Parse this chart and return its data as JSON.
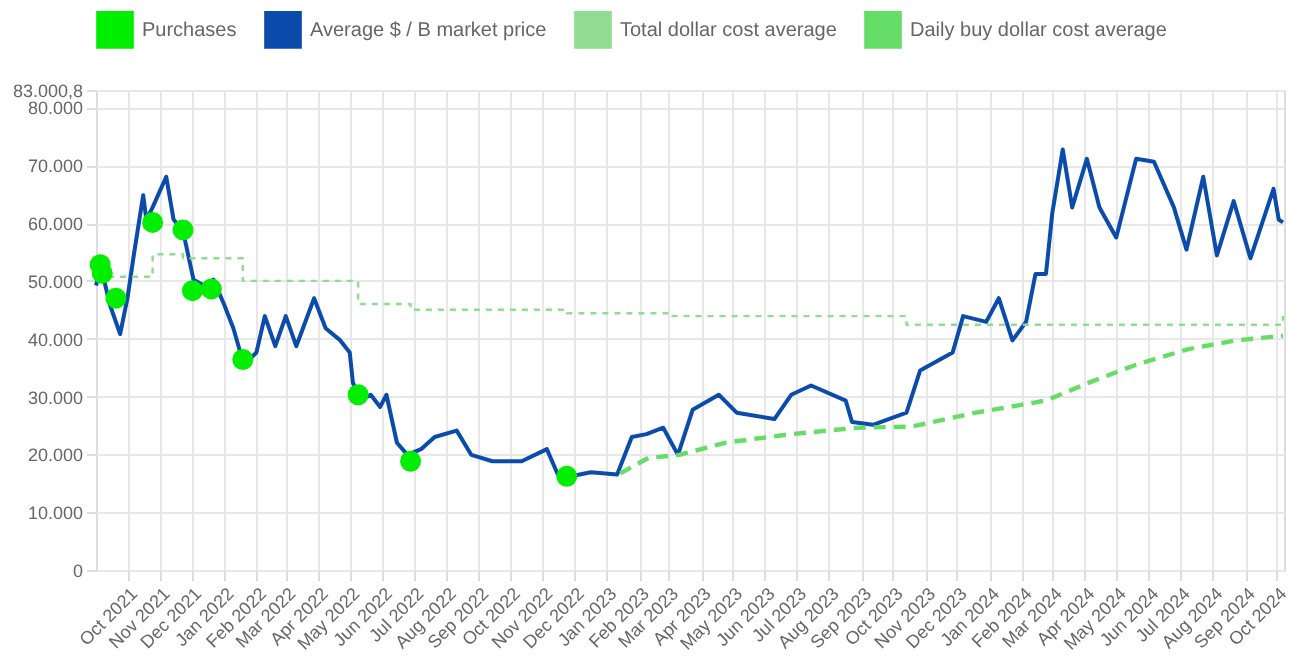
{
  "chart_data": {
    "type": "line",
    "legend": "top",
    "grid": true,
    "xlim": [
      "2021-09-01",
      "2024-10-08"
    ],
    "xticks": [
      {
        "value": "2021-10",
        "label": "Oct 2021"
      },
      {
        "value": "2021-11",
        "label": "Nov 2021"
      },
      {
        "value": "2021-12",
        "label": "Dec 2021"
      },
      {
        "value": "2022-01",
        "label": "Jan 2022"
      },
      {
        "value": "2022-02",
        "label": "Feb 2022"
      },
      {
        "value": "2022-03",
        "label": "Mar 2022"
      },
      {
        "value": "2022-04",
        "label": "Apr 2022"
      },
      {
        "value": "2022-05",
        "label": "May 2022"
      },
      {
        "value": "2022-06",
        "label": "Jun 2022"
      },
      {
        "value": "2022-07",
        "label": "Jul 2022"
      },
      {
        "value": "2022-08",
        "label": "Aug 2022"
      },
      {
        "value": "2022-09",
        "label": "Sep 2022"
      },
      {
        "value": "2022-10",
        "label": "Oct 2022"
      },
      {
        "value": "2022-11",
        "label": "Nov 2022"
      },
      {
        "value": "2022-12",
        "label": "Dec 2022"
      },
      {
        "value": "2023-01",
        "label": "Jan 2023"
      },
      {
        "value": "2023-02",
        "label": "Feb 2023"
      },
      {
        "value": "2023-03",
        "label": "Mar 2023"
      },
      {
        "value": "2023-04",
        "label": "Apr 2023"
      },
      {
        "value": "2023-05",
        "label": "May 2023"
      },
      {
        "value": "2023-06",
        "label": "Jun 2023"
      },
      {
        "value": "2023-07",
        "label": "Jul 2023"
      },
      {
        "value": "2023-08",
        "label": "Aug 2023"
      },
      {
        "value": "2023-09",
        "label": "Sep 2023"
      },
      {
        "value": "2023-10",
        "label": "Oct 2023"
      },
      {
        "value": "2023-11",
        "label": "Nov 2023"
      },
      {
        "value": "2023-12",
        "label": "Dec 2023"
      },
      {
        "value": "2024-01",
        "label": "Jan 2024"
      },
      {
        "value": "2024-02",
        "label": "Feb 2024"
      },
      {
        "value": "2024-03",
        "label": "Mar 2024"
      },
      {
        "value": "2024-04",
        "label": "Apr 2024"
      },
      {
        "value": "2024-05",
        "label": "May 2024"
      },
      {
        "value": "2024-06",
        "label": "Jun 2024"
      },
      {
        "value": "2024-07",
        "label": "Jul 2024"
      },
      {
        "value": "2024-08",
        "label": "Aug 2024"
      },
      {
        "value": "2024-09",
        "label": "Sep 2024"
      },
      {
        "value": "2024-10",
        "label": "Oct 2024"
      }
    ],
    "ylim": [
      0,
      83000.8
    ],
    "yticks": [
      0,
      {
        "value": 10000,
        "label": "10.000"
      },
      {
        "value": 20000,
        "label": "20.000"
      },
      {
        "value": 30000,
        "label": "30.000"
      },
      {
        "value": 40000,
        "label": "40.000"
      },
      {
        "value": 50000,
        "label": "50.000"
      },
      {
        "value": 60000,
        "label": "60.000"
      },
      {
        "value": 70000,
        "label": "70.000"
      },
      {
        "value": 80000,
        "label": "80.000"
      },
      {
        "value": 83000.8,
        "label": "83.000,8"
      }
    ],
    "series": [
      {
        "name": "Purchases",
        "type": "scatter",
        "marker": "circle",
        "color": "#00ee00",
        "x": [
          "2021-09-05",
          "2021-09-07",
          "2021-09-20",
          "2021-10-25",
          "2021-11-23",
          "2021-12-02",
          "2021-12-20",
          "2022-01-19",
          "2022-05-09",
          "2022-06-28",
          "2022-11-24"
        ],
        "values": [
          52800,
          51300,
          47000,
          60100,
          58800,
          48300,
          48600,
          36400,
          30300,
          18800,
          16200
        ]
      },
      {
        "name": "Average $ / B market price",
        "line_style": "solid",
        "color": "#0a4bab",
        "x": [
          "2021-09-01",
          "2021-09-06",
          "2021-09-14",
          "2021-09-24",
          "2021-10-01",
          "2021-10-07",
          "2021-10-16",
          "2021-10-19",
          "2021-10-25",
          "2021-11-07",
          "2021-11-14",
          "2021-11-23",
          "2021-12-03",
          "2021-12-13",
          "2021-12-22",
          "2022-01-01",
          "2022-01-10",
          "2022-01-20",
          "2022-02-01",
          "2022-02-09",
          "2022-02-19",
          "2022-03-01",
          "2022-03-11",
          "2022-03-28",
          "2022-04-08",
          "2022-04-22",
          "2022-05-01",
          "2022-05-04",
          "2022-05-11",
          "2022-05-21",
          "2022-05-30",
          "2022-06-05",
          "2022-06-15",
          "2022-06-25",
          "2022-07-08",
          "2022-07-21",
          "2022-08-11",
          "2022-08-25",
          "2022-09-14",
          "2022-10-12",
          "2022-11-05",
          "2022-11-15",
          "2022-11-28",
          "2022-12-17",
          "2023-01-11",
          "2023-01-25",
          "2023-02-08",
          "2023-02-24",
          "2023-03-10",
          "2023-03-24",
          "2023-04-18",
          "2023-05-05",
          "2023-06-10",
          "2023-06-26",
          "2023-07-15",
          "2023-08-17",
          "2023-08-23",
          "2023-09-12",
          "2023-10-14",
          "2023-10-27",
          "2023-11-27",
          "2023-12-07",
          "2023-12-29",
          "2024-01-10",
          "2024-01-23",
          "2024-02-05",
          "2024-02-14",
          "2024-02-24",
          "2024-03-01",
          "2024-03-11",
          "2024-03-20",
          "2024-04-03",
          "2024-04-15",
          "2024-05-01",
          "2024-05-20",
          "2024-06-06",
          "2024-06-25",
          "2024-07-07",
          "2024-07-23",
          "2024-08-05",
          "2024-08-21",
          "2024-09-06",
          "2024-09-28",
          "2024-10-03",
          "2024-10-07"
        ],
        "values": [
          49200,
          52300,
          46000,
          40800,
          47000,
          54400,
          64800,
          60600,
          62700,
          68000,
          60600,
          58600,
          50200,
          49200,
          50200,
          46000,
          41800,
          35500,
          37600,
          43900,
          38700,
          43900,
          38700,
          47000,
          41800,
          39700,
          37600,
          32400,
          29300,
          30300,
          28200,
          30300,
          22000,
          19900,
          20900,
          23000,
          24100,
          19900,
          18800,
          18800,
          20900,
          16700,
          16200,
          16900,
          16500,
          23000,
          23500,
          24600,
          19900,
          27700,
          30300,
          27200,
          26100,
          30300,
          31900,
          29300,
          25600,
          25100,
          27200,
          34500,
          37600,
          43900,
          42900,
          47000,
          39700,
          42900,
          51200,
          51200,
          61700,
          72700,
          62700,
          71100,
          62700,
          57500,
          71100,
          70600,
          62700,
          55400,
          68000,
          54400,
          63800,
          53900,
          65900,
          60600,
          60100
        ]
      },
      {
        "name": "Total dollar cost average",
        "type": "step",
        "line_style": "dotted",
        "color": "#90dc90",
        "x": [
          "2021-09-01",
          "2021-10-25",
          "2021-11-23",
          "2022-01-19",
          "2022-05-09",
          "2022-06-28",
          "2022-11-24",
          "2023-03-01",
          "2023-10-14",
          "2024-10-07"
        ],
        "values": [
          50700,
          54600,
          53900,
          50000,
          46000,
          45000,
          44400,
          43900,
          42400,
          43900
        ]
      },
      {
        "name": "Daily buy dollar cost average",
        "type": "line",
        "line_style": "dashed",
        "color": "#66dd66",
        "x": [
          "2023-01-14",
          "2023-02-10",
          "2023-03-11",
          "2023-04-24",
          "2023-06-26",
          "2023-08-29",
          "2023-10-19",
          "2023-12-19",
          "2024-02-24",
          "2024-04-05",
          "2024-05-20",
          "2024-07-09",
          "2024-08-23",
          "2024-10-07"
        ],
        "values": [
          16700,
          19400,
          19900,
          22000,
          23500,
          24600,
          24800,
          27200,
          29300,
          32400,
          35500,
          38200,
          39700,
          40500
        ]
      }
    ]
  }
}
